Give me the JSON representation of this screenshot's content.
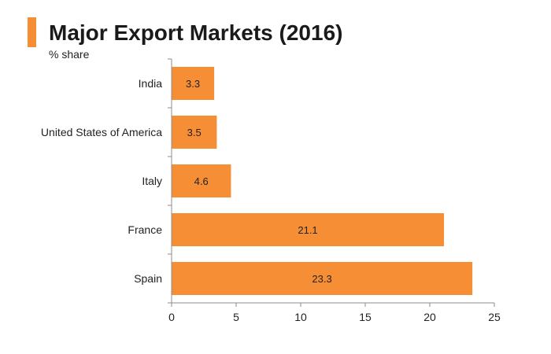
{
  "header": {
    "title": "Major Export Markets (2016)",
    "subtitle": "% share"
  },
  "colors": {
    "accent": "#F58E35",
    "bar": "#F58E35",
    "axis": "#8c8c8c"
  },
  "chart_data": {
    "type": "bar",
    "orientation": "horizontal",
    "title": "Major Export Markets (2016)",
    "subtitle": "% share",
    "categories": [
      "India",
      "United States of America",
      "Italy",
      "France",
      "Spain"
    ],
    "values": [
      3.3,
      3.5,
      4.6,
      21.1,
      23.3
    ],
    "data_labels": [
      "3.3",
      "3.5",
      "4.6",
      "21.1",
      "23.3"
    ],
    "xlim": [
      0,
      25
    ],
    "xticks": [
      0,
      5,
      10,
      15,
      20,
      25
    ],
    "xlabel": "",
    "ylabel": "",
    "grid": false,
    "legend": "none"
  }
}
